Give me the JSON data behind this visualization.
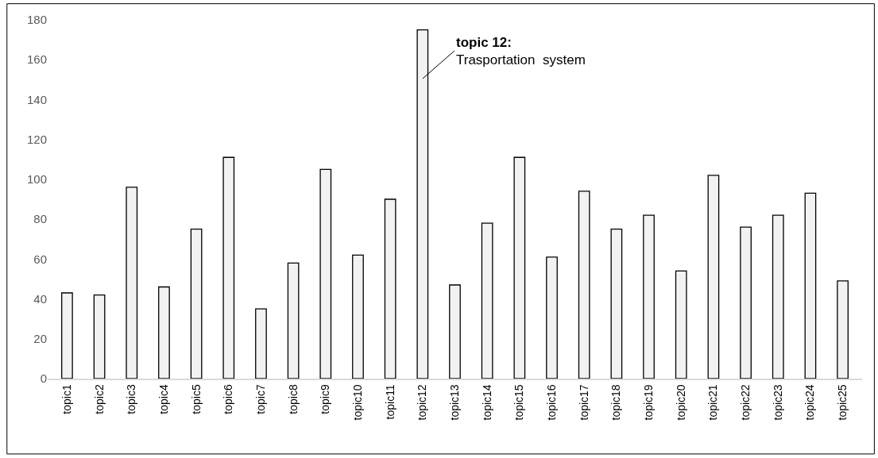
{
  "chart_data": {
    "type": "bar",
    "categories": [
      "topic1",
      "topic2",
      "topic3",
      "topic4",
      "topic5",
      "topic6",
      "topic7",
      "topic8",
      "topic9",
      "topic10",
      "topic11",
      "topic12",
      "topic13",
      "topic14",
      "topic15",
      "topic16",
      "topic17",
      "topic18",
      "topic19",
      "topic20",
      "topic21",
      "topic22",
      "topic23",
      "topic24",
      "topic25"
    ],
    "values": [
      43,
      42,
      96,
      46,
      75,
      111,
      35,
      58,
      105,
      62,
      90,
      175,
      47,
      78,
      111,
      61,
      94,
      75,
      82,
      54,
      102,
      76,
      82,
      93,
      49
    ],
    "color": "#f2f2f2",
    "ylim": [
      0,
      180
    ],
    "yticks": [
      0,
      20,
      40,
      60,
      80,
      100,
      120,
      140,
      160,
      180
    ],
    "legend": false,
    "annotations": [
      "topic 12:\nTrasportation  system"
    ]
  }
}
